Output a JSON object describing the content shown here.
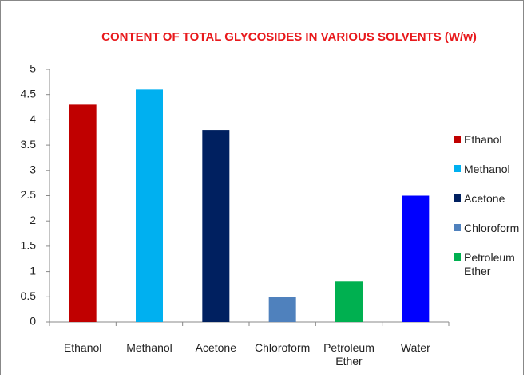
{
  "chart_data": {
    "type": "bar",
    "title": "CONTENT OF TOTAL GLYCOSIDES IN VARIOUS SOLVENTS (W/w)",
    "categories": [
      "Ethanol",
      "Methanol",
      "Acetone",
      "Chloroform",
      "Petroleum Ether",
      "Water"
    ],
    "values": [
      4.3,
      4.6,
      3.8,
      0.5,
      0.8,
      2.5
    ],
    "colors": [
      "#c00000",
      "#00b0f0",
      "#002060",
      "#4f81bd",
      "#00b050",
      "#0000ff"
    ],
    "legend": [
      {
        "name": "Ethanol",
        "color": "#c00000"
      },
      {
        "name": "Methanol",
        "color": "#00b0f0"
      },
      {
        "name": "Acetone",
        "color": "#002060"
      },
      {
        "name": "Chloroform",
        "color": "#4f81bd"
      },
      {
        "name": "Petroleum Ether",
        "color": "#00b050"
      }
    ],
    "legend_position": "right",
    "ylim": [
      0,
      5
    ],
    "yticks": [
      0,
      0.5,
      1,
      1.5,
      2,
      2.5,
      3,
      3.5,
      4,
      4.5,
      5
    ],
    "grid": false
  }
}
